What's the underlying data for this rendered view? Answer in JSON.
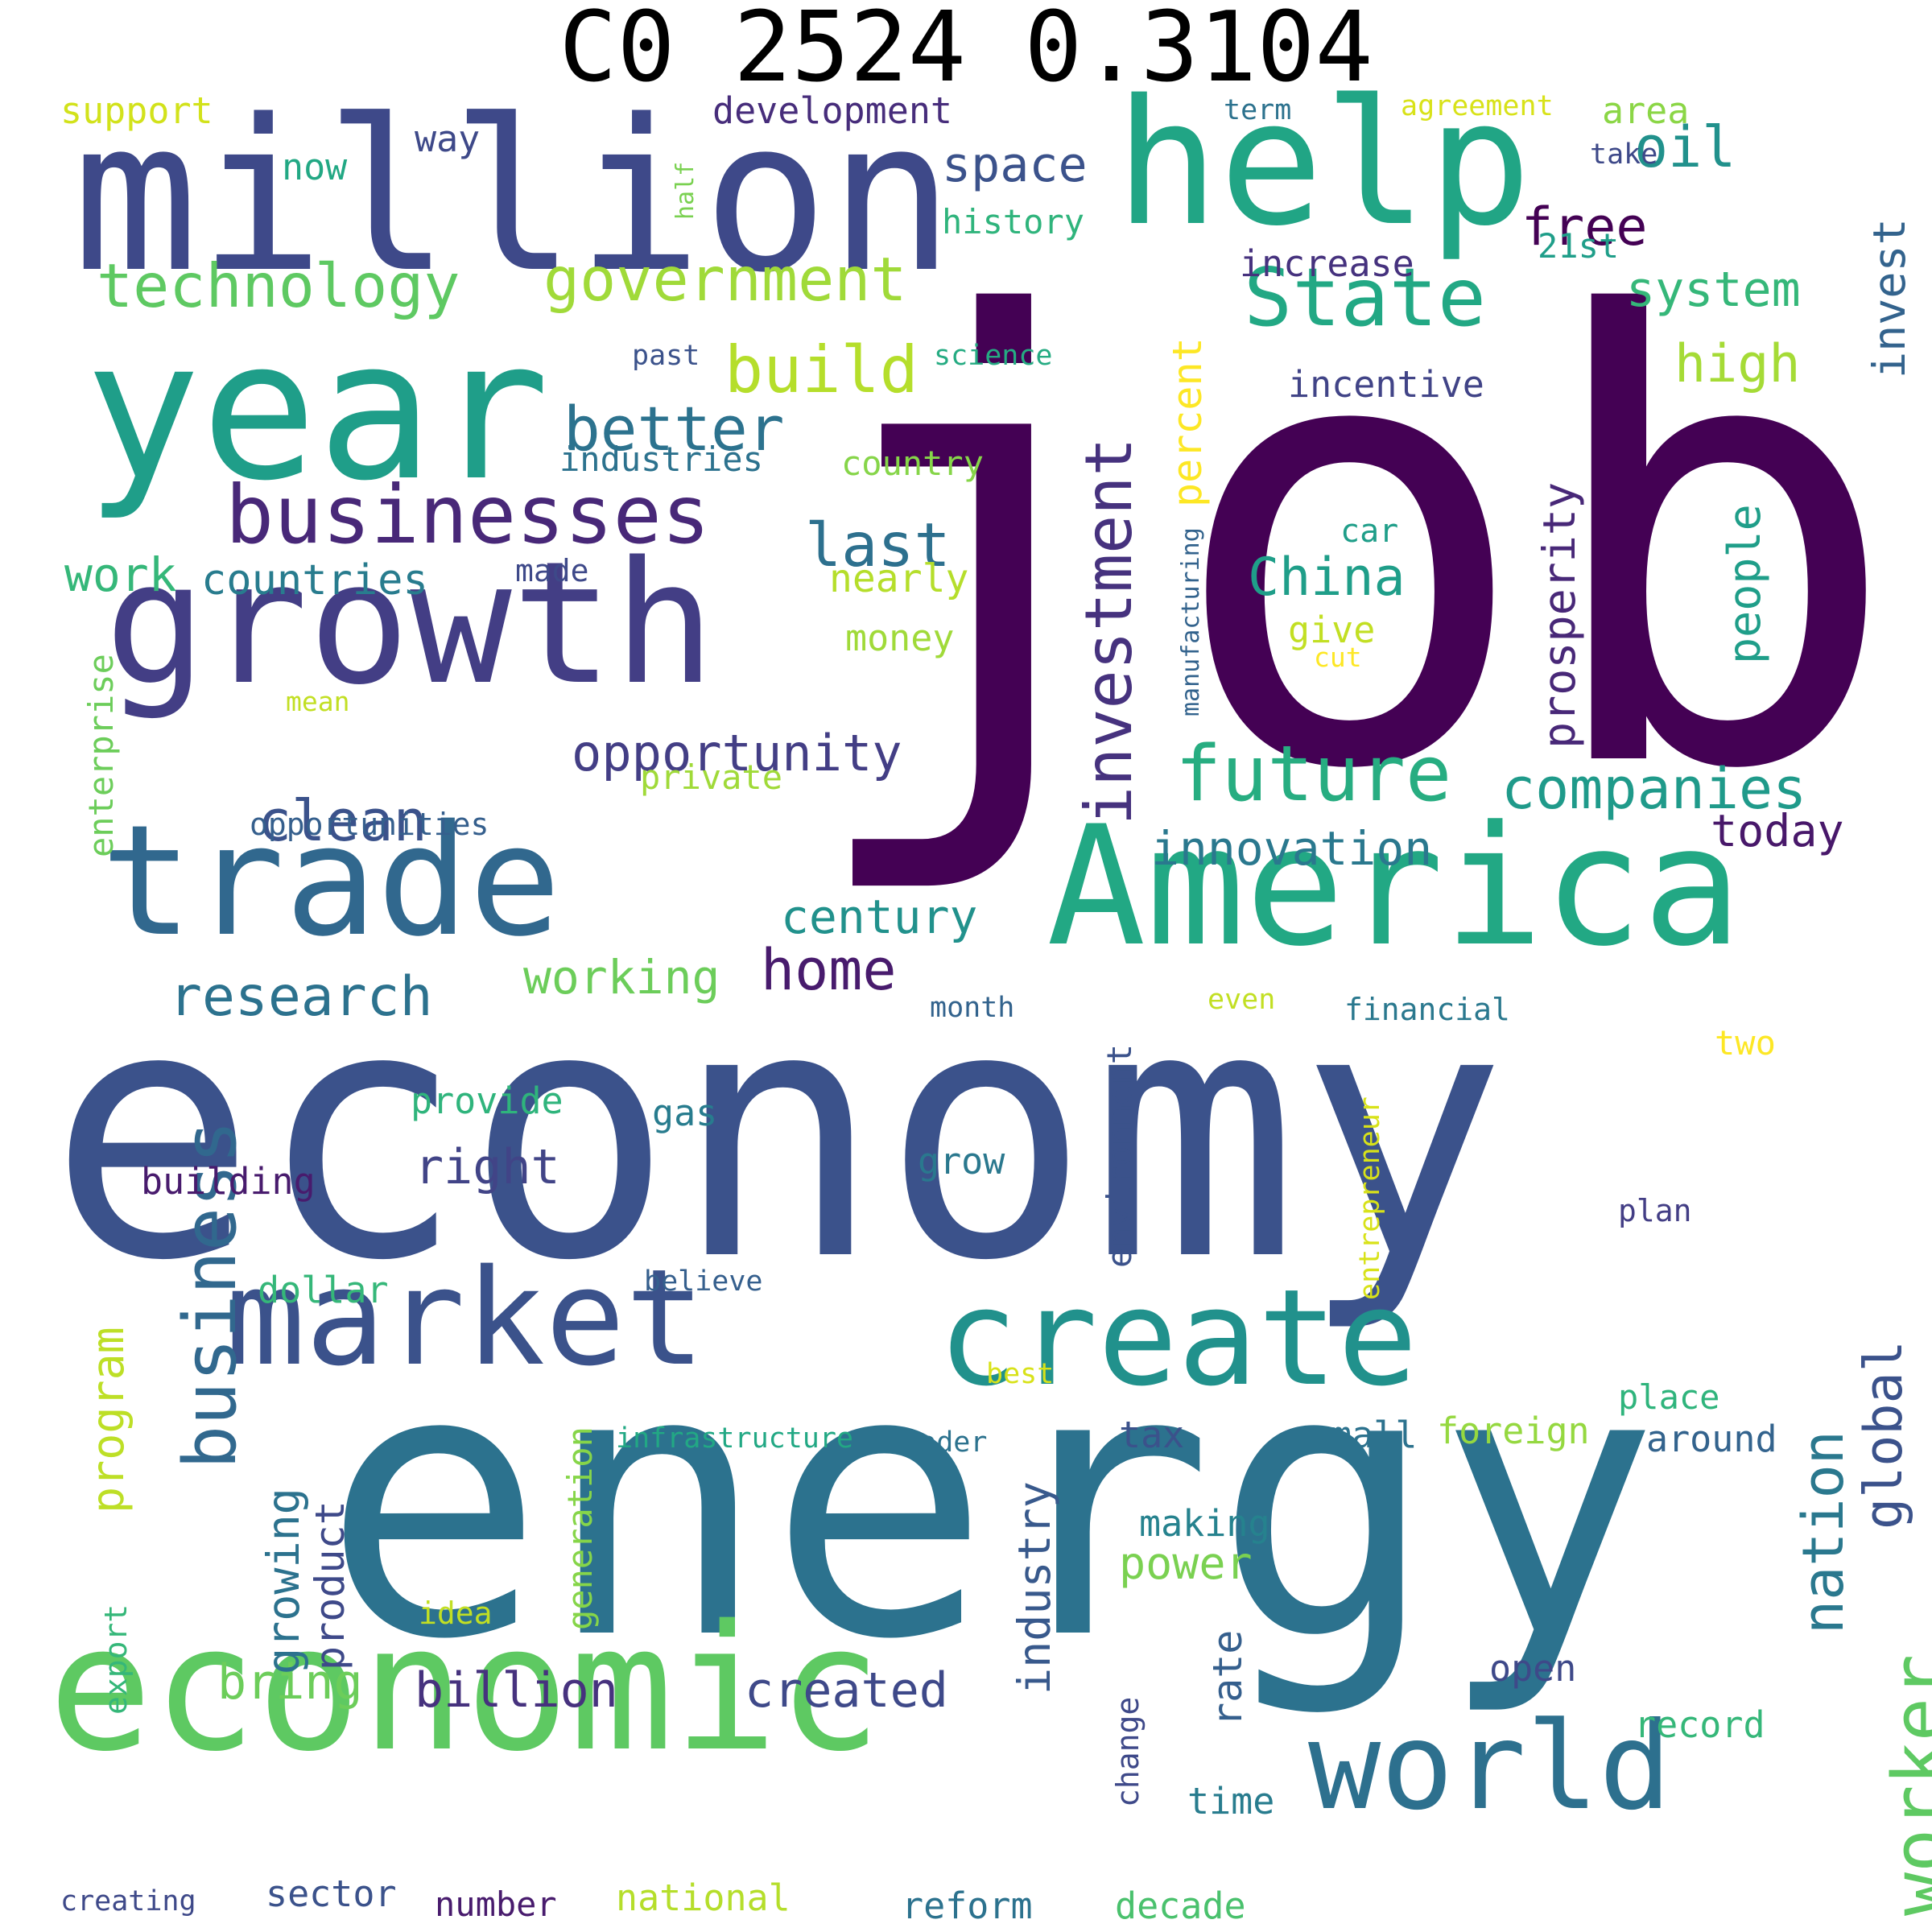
{
  "title": "C0 2524 0.3104",
  "words": [
    {
      "text": "job",
      "color": "#440154",
      "rotated": false
    },
    {
      "text": "economy",
      "color": "#3b528b",
      "rotated": false
    },
    {
      "text": "energy",
      "color": "#2c728e",
      "rotated": false
    },
    {
      "text": "million",
      "color": "#3e4989",
      "rotated": false
    },
    {
      "text": "help",
      "color": "#21a585",
      "rotated": false
    },
    {
      "text": "year",
      "color": "#1f9e89",
      "rotated": false
    },
    {
      "text": "growth",
      "color": "#433e85",
      "rotated": false
    },
    {
      "text": "America",
      "color": "#22a884",
      "rotated": false
    },
    {
      "text": "trade",
      "color": "#31688e",
      "rotated": false
    },
    {
      "text": "economic",
      "color": "#5ec962",
      "rotated": false
    },
    {
      "text": "market",
      "color": "#3b528b",
      "rotated": false
    },
    {
      "text": "create",
      "color": "#21918c",
      "rotated": false
    },
    {
      "text": "world",
      "color": "#2d708e",
      "rotated": false
    },
    {
      "text": "businesses",
      "color": "#482878",
      "rotated": false
    },
    {
      "text": "investment",
      "color": "#46327e",
      "rotated": true
    },
    {
      "text": "State",
      "color": "#22a884",
      "rotated": false
    },
    {
      "text": "future",
      "color": "#27ad81",
      "rotated": false
    },
    {
      "text": "technology",
      "color": "#5ec962",
      "rotated": false
    },
    {
      "text": "government",
      "color": "#a0da39",
      "rotated": false
    },
    {
      "text": "build",
      "color": "#b5de2b",
      "rotated": false
    },
    {
      "text": "better",
      "color": "#2c728e",
      "rotated": false
    },
    {
      "text": "space",
      "color": "#3b528b",
      "rotated": false
    },
    {
      "text": "oil",
      "color": "#21918c",
      "rotated": false
    },
    {
      "text": "free",
      "color": "#440154",
      "rotated": false
    },
    {
      "text": "system",
      "color": "#35b779",
      "rotated": false
    },
    {
      "text": "high",
      "color": "#a5db36",
      "rotated": false
    },
    {
      "text": "invest",
      "color": "#33638d",
      "rotated": true
    },
    {
      "text": "companies",
      "color": "#1f9a8a",
      "rotated": false
    },
    {
      "text": "business",
      "color": "#31688e",
      "rotated": true
    },
    {
      "text": "worker",
      "color": "#5ec962",
      "rotated": true
    },
    {
      "text": "nation",
      "color": "#2a788e",
      "rotated": true
    },
    {
      "text": "global",
      "color": "#3b528b",
      "rotated": true
    },
    {
      "text": "industry",
      "color": "#38598c",
      "rotated": true
    },
    {
      "text": "prosperity",
      "color": "#482878",
      "rotated": true
    },
    {
      "text": "percent",
      "color": "#fde725",
      "rotated": true
    },
    {
      "text": "people",
      "color": "#1f9e89",
      "rotated": true
    },
    {
      "text": "clean",
      "color": "#3b528b",
      "rotated": false
    },
    {
      "text": "opportunity",
      "color": "#433e85",
      "rotated": false
    },
    {
      "text": "last",
      "color": "#2d708e",
      "rotated": false
    },
    {
      "text": "China",
      "color": "#1f9e89",
      "rotated": false
    },
    {
      "text": "countries",
      "color": "#287c8e",
      "rotated": false
    },
    {
      "text": "work",
      "color": "#35b779",
      "rotated": false
    },
    {
      "text": "research",
      "color": "#2c728e",
      "rotated": false
    },
    {
      "text": "home",
      "color": "#481b6d",
      "rotated": false
    },
    {
      "text": "working",
      "color": "#6ccd5a",
      "rotated": false
    },
    {
      "text": "century",
      "color": "#21918c",
      "rotated": false
    },
    {
      "text": "innovation",
      "color": "#2a788e",
      "rotated": false
    },
    {
      "text": "today",
      "color": "#48186a",
      "rotated": false
    },
    {
      "text": "right",
      "color": "#414487",
      "rotated": false
    },
    {
      "text": "billion",
      "color": "#46327e",
      "rotated": false
    },
    {
      "text": "created",
      "color": "#3e4989",
      "rotated": false
    },
    {
      "text": "bring",
      "color": "#6ccd5a",
      "rotated": false
    },
    {
      "text": "power",
      "color": "#7ad151",
      "rotated": false
    },
    {
      "text": "program",
      "color": "#bddf26",
      "rotated": true
    },
    {
      "text": "growing",
      "color": "#2c728e",
      "rotated": true
    },
    {
      "text": "product",
      "color": "#3e4989",
      "rotated": true
    },
    {
      "text": "rate",
      "color": "#355f8d",
      "rotated": true
    },
    {
      "text": "development",
      "color": "#472d7b",
      "rotated": false
    },
    {
      "text": "support",
      "color": "#d2e21b",
      "rotated": false
    },
    {
      "text": "way",
      "color": "#3e4989",
      "rotated": false
    },
    {
      "text": "now",
      "color": "#22a884",
      "rotated": false
    },
    {
      "text": "history",
      "color": "#2fb47c",
      "rotated": false
    },
    {
      "text": "half",
      "color": "#7ad151",
      "rotated": true
    },
    {
      "text": "term",
      "color": "#2c728e",
      "rotated": false
    },
    {
      "text": "agreement",
      "color": "#d8e219",
      "rotated": false
    },
    {
      "text": "area",
      "color": "#8bd646",
      "rotated": false
    },
    {
      "text": "take",
      "color": "#3e4989",
      "rotated": false
    },
    {
      "text": "21st",
      "color": "#1f9e89",
      "rotated": false
    },
    {
      "text": "increase",
      "color": "#46327e",
      "rotated": false
    },
    {
      "text": "incentive",
      "color": "#414487",
      "rotated": false
    },
    {
      "text": "past",
      "color": "#3b528b",
      "rotated": false
    },
    {
      "text": "science",
      "color": "#25ab82",
      "rotated": false
    },
    {
      "text": "industries",
      "color": "#2c728e",
      "rotated": false
    },
    {
      "text": "country",
      "color": "#86d549",
      "rotated": false
    },
    {
      "text": "manufacturing",
      "color": "#33638d",
      "rotated": true
    },
    {
      "text": "car",
      "color": "#1f9e89",
      "rotated": false
    },
    {
      "text": "nearly",
      "color": "#b5de2b",
      "rotated": false
    },
    {
      "text": "made",
      "color": "#3e4989",
      "rotated": false
    },
    {
      "text": "give",
      "color": "#c2df23",
      "rotated": false
    },
    {
      "text": "cut",
      "color": "#fde725",
      "rotated": false
    },
    {
      "text": "money",
      "color": "#a0da39",
      "rotated": false
    },
    {
      "text": "mean",
      "color": "#c2df23",
      "rotated": false
    },
    {
      "text": "enterprise",
      "color": "#6ccd5a",
      "rotated": true
    },
    {
      "text": "opportunities",
      "color": "#355f8d",
      "rotated": false
    },
    {
      "text": "private",
      "color": "#a0da39",
      "rotated": false
    },
    {
      "text": "month",
      "color": "#33638d",
      "rotated": false
    },
    {
      "text": "even",
      "color": "#c2df23",
      "rotated": false
    },
    {
      "text": "financial",
      "color": "#2a788e",
      "rotated": false
    },
    {
      "text": "two",
      "color": "#fde725",
      "rotated": false
    },
    {
      "text": "environment",
      "color": "#3b528b",
      "rotated": true
    },
    {
      "text": "provide",
      "color": "#2fb47c",
      "rotated": false
    },
    {
      "text": "gas",
      "color": "#287c8e",
      "rotated": false
    },
    {
      "text": "building",
      "color": "#481b6d",
      "rotated": false
    },
    {
      "text": "grow",
      "color": "#2a788e",
      "rotated": false
    },
    {
      "text": "entrepreneur",
      "color": "#d8e219",
      "rotated": true
    },
    {
      "text": "plan",
      "color": "#433e85",
      "rotated": false
    },
    {
      "text": "dollar",
      "color": "#35b779",
      "rotated": false
    },
    {
      "text": "believe",
      "color": "#355f8d",
      "rotated": false
    },
    {
      "text": "best",
      "color": "#d8e219",
      "rotated": false
    },
    {
      "text": "place",
      "color": "#2fb47c",
      "rotated": false
    },
    {
      "text": "around",
      "color": "#33638d",
      "rotated": false
    },
    {
      "text": "foreign",
      "color": "#95d840",
      "rotated": false
    },
    {
      "text": "small",
      "color": "#2c728e",
      "rotated": false
    },
    {
      "text": "tax",
      "color": "#3b528b",
      "rotated": false
    },
    {
      "text": "leader",
      "color": "#2c728e",
      "rotated": false
    },
    {
      "text": "infrastructure",
      "color": "#22a884",
      "rotated": false
    },
    {
      "text": "generation",
      "color": "#86d549",
      "rotated": true
    },
    {
      "text": "making",
      "color": "#26828e",
      "rotated": false
    },
    {
      "text": "idea",
      "color": "#c2df23",
      "rotated": false
    },
    {
      "text": "export",
      "color": "#35b779",
      "rotated": true
    },
    {
      "text": "open",
      "color": "#3e4989",
      "rotated": false
    },
    {
      "text": "record",
      "color": "#35b779",
      "rotated": false
    },
    {
      "text": "change",
      "color": "#3e4989",
      "rotated": true
    },
    {
      "text": "time",
      "color": "#287c8e",
      "rotated": false
    },
    {
      "text": "creating",
      "color": "#3e4989",
      "rotated": false
    },
    {
      "text": "sector",
      "color": "#3b528b",
      "rotated": false
    },
    {
      "text": "number",
      "color": "#481b6d",
      "rotated": false
    },
    {
      "text": "national",
      "color": "#b5de2b",
      "rotated": false
    },
    {
      "text": "reform",
      "color": "#2c728e",
      "rotated": false
    },
    {
      "text": "decade",
      "color": "#4ac16d",
      "rotated": false
    }
  ]
}
